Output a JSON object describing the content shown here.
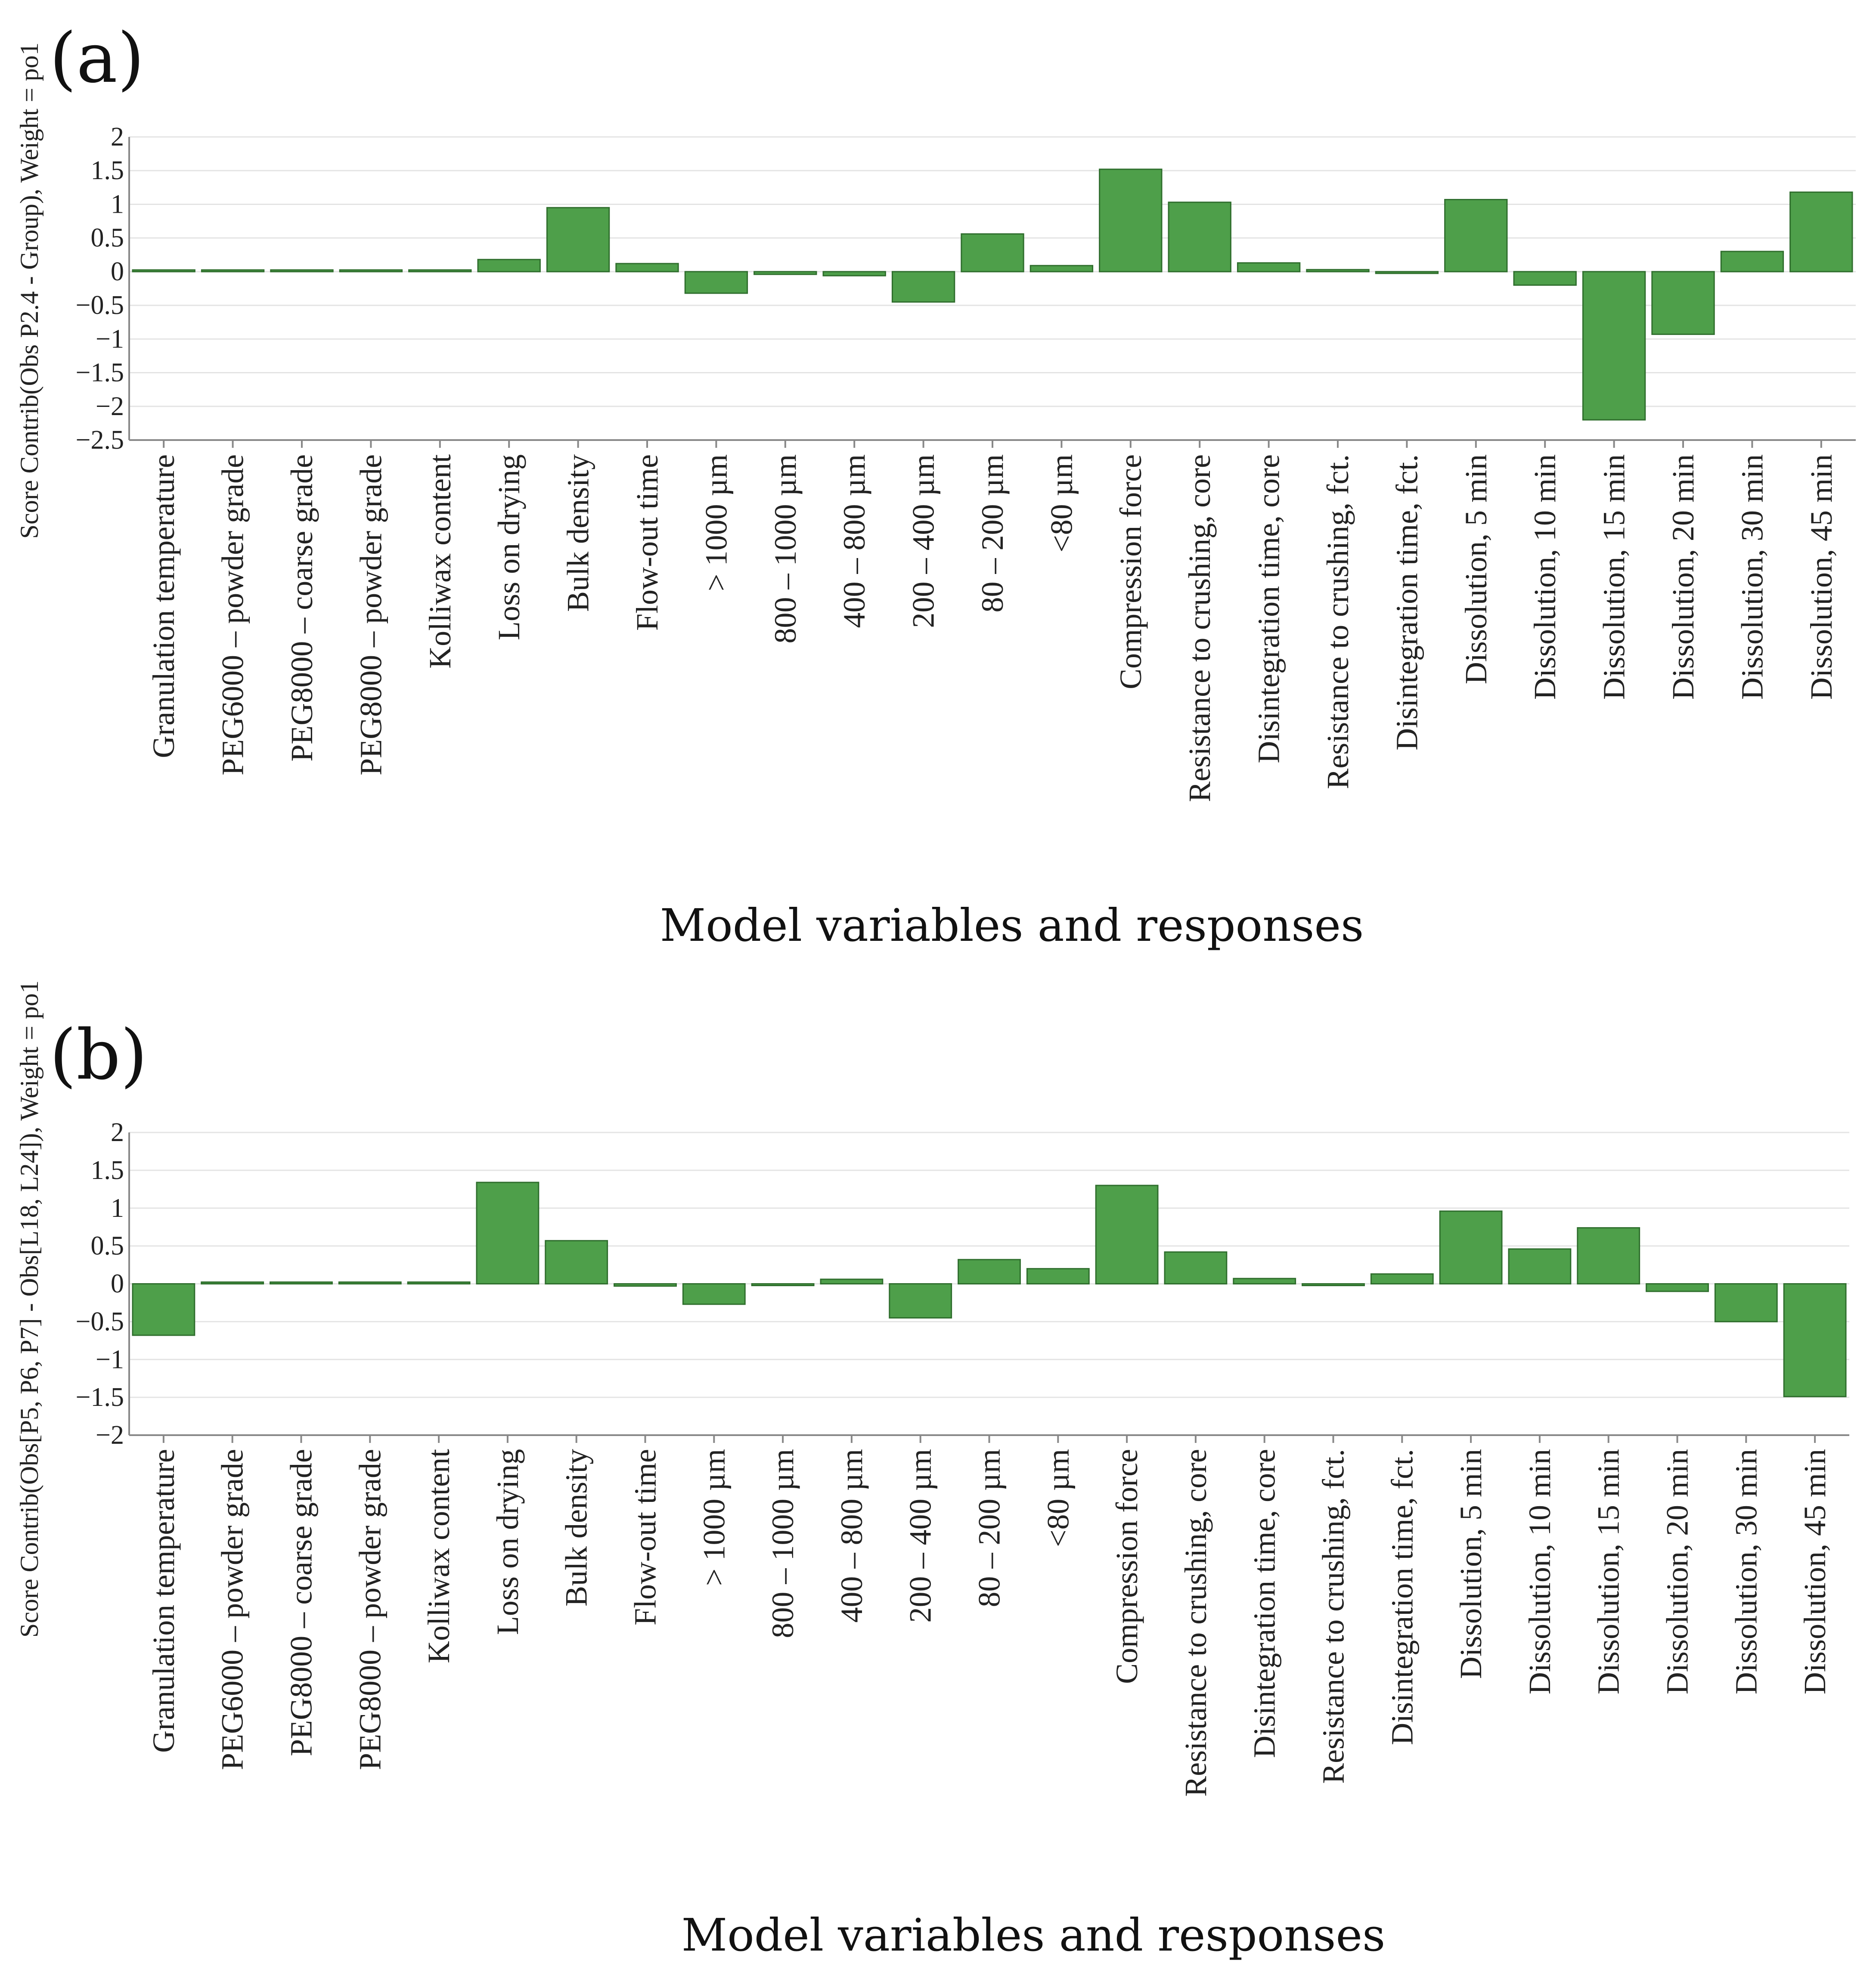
{
  "chart_data": [
    {
      "type": "bar",
      "panel_label": "(a)",
      "ylabel": "Score Contrib(Obs P2.4 - Group), Weight = po1",
      "xlabel": "Model variables and responses",
      "ylim": [
        -2.5,
        2
      ],
      "yticks": [
        "2",
        "1.5",
        "1",
        "0.5",
        "0",
        "−0.5",
        "−1",
        "−1.5",
        "−2",
        "−2.5"
      ],
      "ytick_values": [
        2,
        1.5,
        1,
        0.5,
        0,
        -0.5,
        -1,
        -1.5,
        -2,
        -2.5
      ],
      "grid": true,
      "categories": [
        "Granulation temperature",
        "PEG6000 – powder grade",
        "PEG8000 – coarse grade",
        "PEG8000 – powder grade",
        "Kolliwax content",
        "Loss on drying",
        "Bulk density",
        "Flow-out time",
        "> 1000 µm",
        "800 – 1000 µm",
        "400 – 800 µm",
        "200 – 400 µm",
        "80 – 200 µm",
        "<80 µm",
        "Compression force",
        "Resistance to crushing, core",
        "Disintegration time, core",
        "Resistance to crushing, fct.",
        "Disintegration time, fct.",
        "Dissolution, 5 min",
        "Dissolution, 10 min",
        "Dissolution, 15 min",
        "Dissolution, 20 min",
        "Dissolution, 30 min",
        "Dissolution, 45 min"
      ],
      "values": [
        0.0,
        0.0,
        0.0,
        0.0,
        0.0,
        0.18,
        0.95,
        0.12,
        -0.32,
        -0.04,
        -0.06,
        -0.45,
        0.56,
        0.09,
        1.52,
        1.03,
        0.13,
        0.03,
        -0.02,
        1.07,
        -0.2,
        -2.2,
        -0.93,
        0.3,
        1.18
      ]
    },
    {
      "type": "bar",
      "panel_label": "(b)",
      "ylabel": "Score Contrib(Obs[P5, P6, P7] - Obs[L18, L24]), Weight = po1",
      "xlabel": "Model variables and responses",
      "ylim": [
        -2,
        2
      ],
      "yticks": [
        "2",
        "1.5",
        "1",
        "0.5",
        "0",
        "−0.5",
        "−1",
        "−1.5",
        "−2"
      ],
      "ytick_values": [
        2,
        1.5,
        1,
        0.5,
        0,
        -0.5,
        -1,
        -1.5,
        -2
      ],
      "grid": true,
      "categories": [
        "Granulation temperature",
        "PEG6000 – powder grade",
        "PEG8000 – coarse grade",
        "PEG8000 – powder grade",
        "Kolliwax content",
        "Loss on drying",
        "Bulk density",
        "Flow-out time",
        "> 1000 µm",
        "800 – 1000 µm",
        "400 – 800 µm",
        "200 – 400 µm",
        "80 – 200 µm",
        "<80 µm",
        "Compression force",
        "Resistance to crushing, core",
        "Disintegration time, core",
        "Resistance to crushing, fct.",
        "Disintegration time, fct.",
        "Dissolution, 5 min",
        "Dissolution, 10 min",
        "Dissolution, 15 min",
        "Dissolution, 20 min",
        "Dissolution, 30 min",
        "Dissolution, 45 min"
      ],
      "values": [
        -0.68,
        0.0,
        0.0,
        0.0,
        0.0,
        1.34,
        0.57,
        -0.03,
        -0.27,
        -0.01,
        0.06,
        -0.45,
        0.32,
        0.2,
        1.3,
        0.42,
        0.07,
        -0.01,
        0.13,
        0.96,
        0.46,
        0.74,
        -0.1,
        -0.5,
        -1.49
      ]
    }
  ]
}
